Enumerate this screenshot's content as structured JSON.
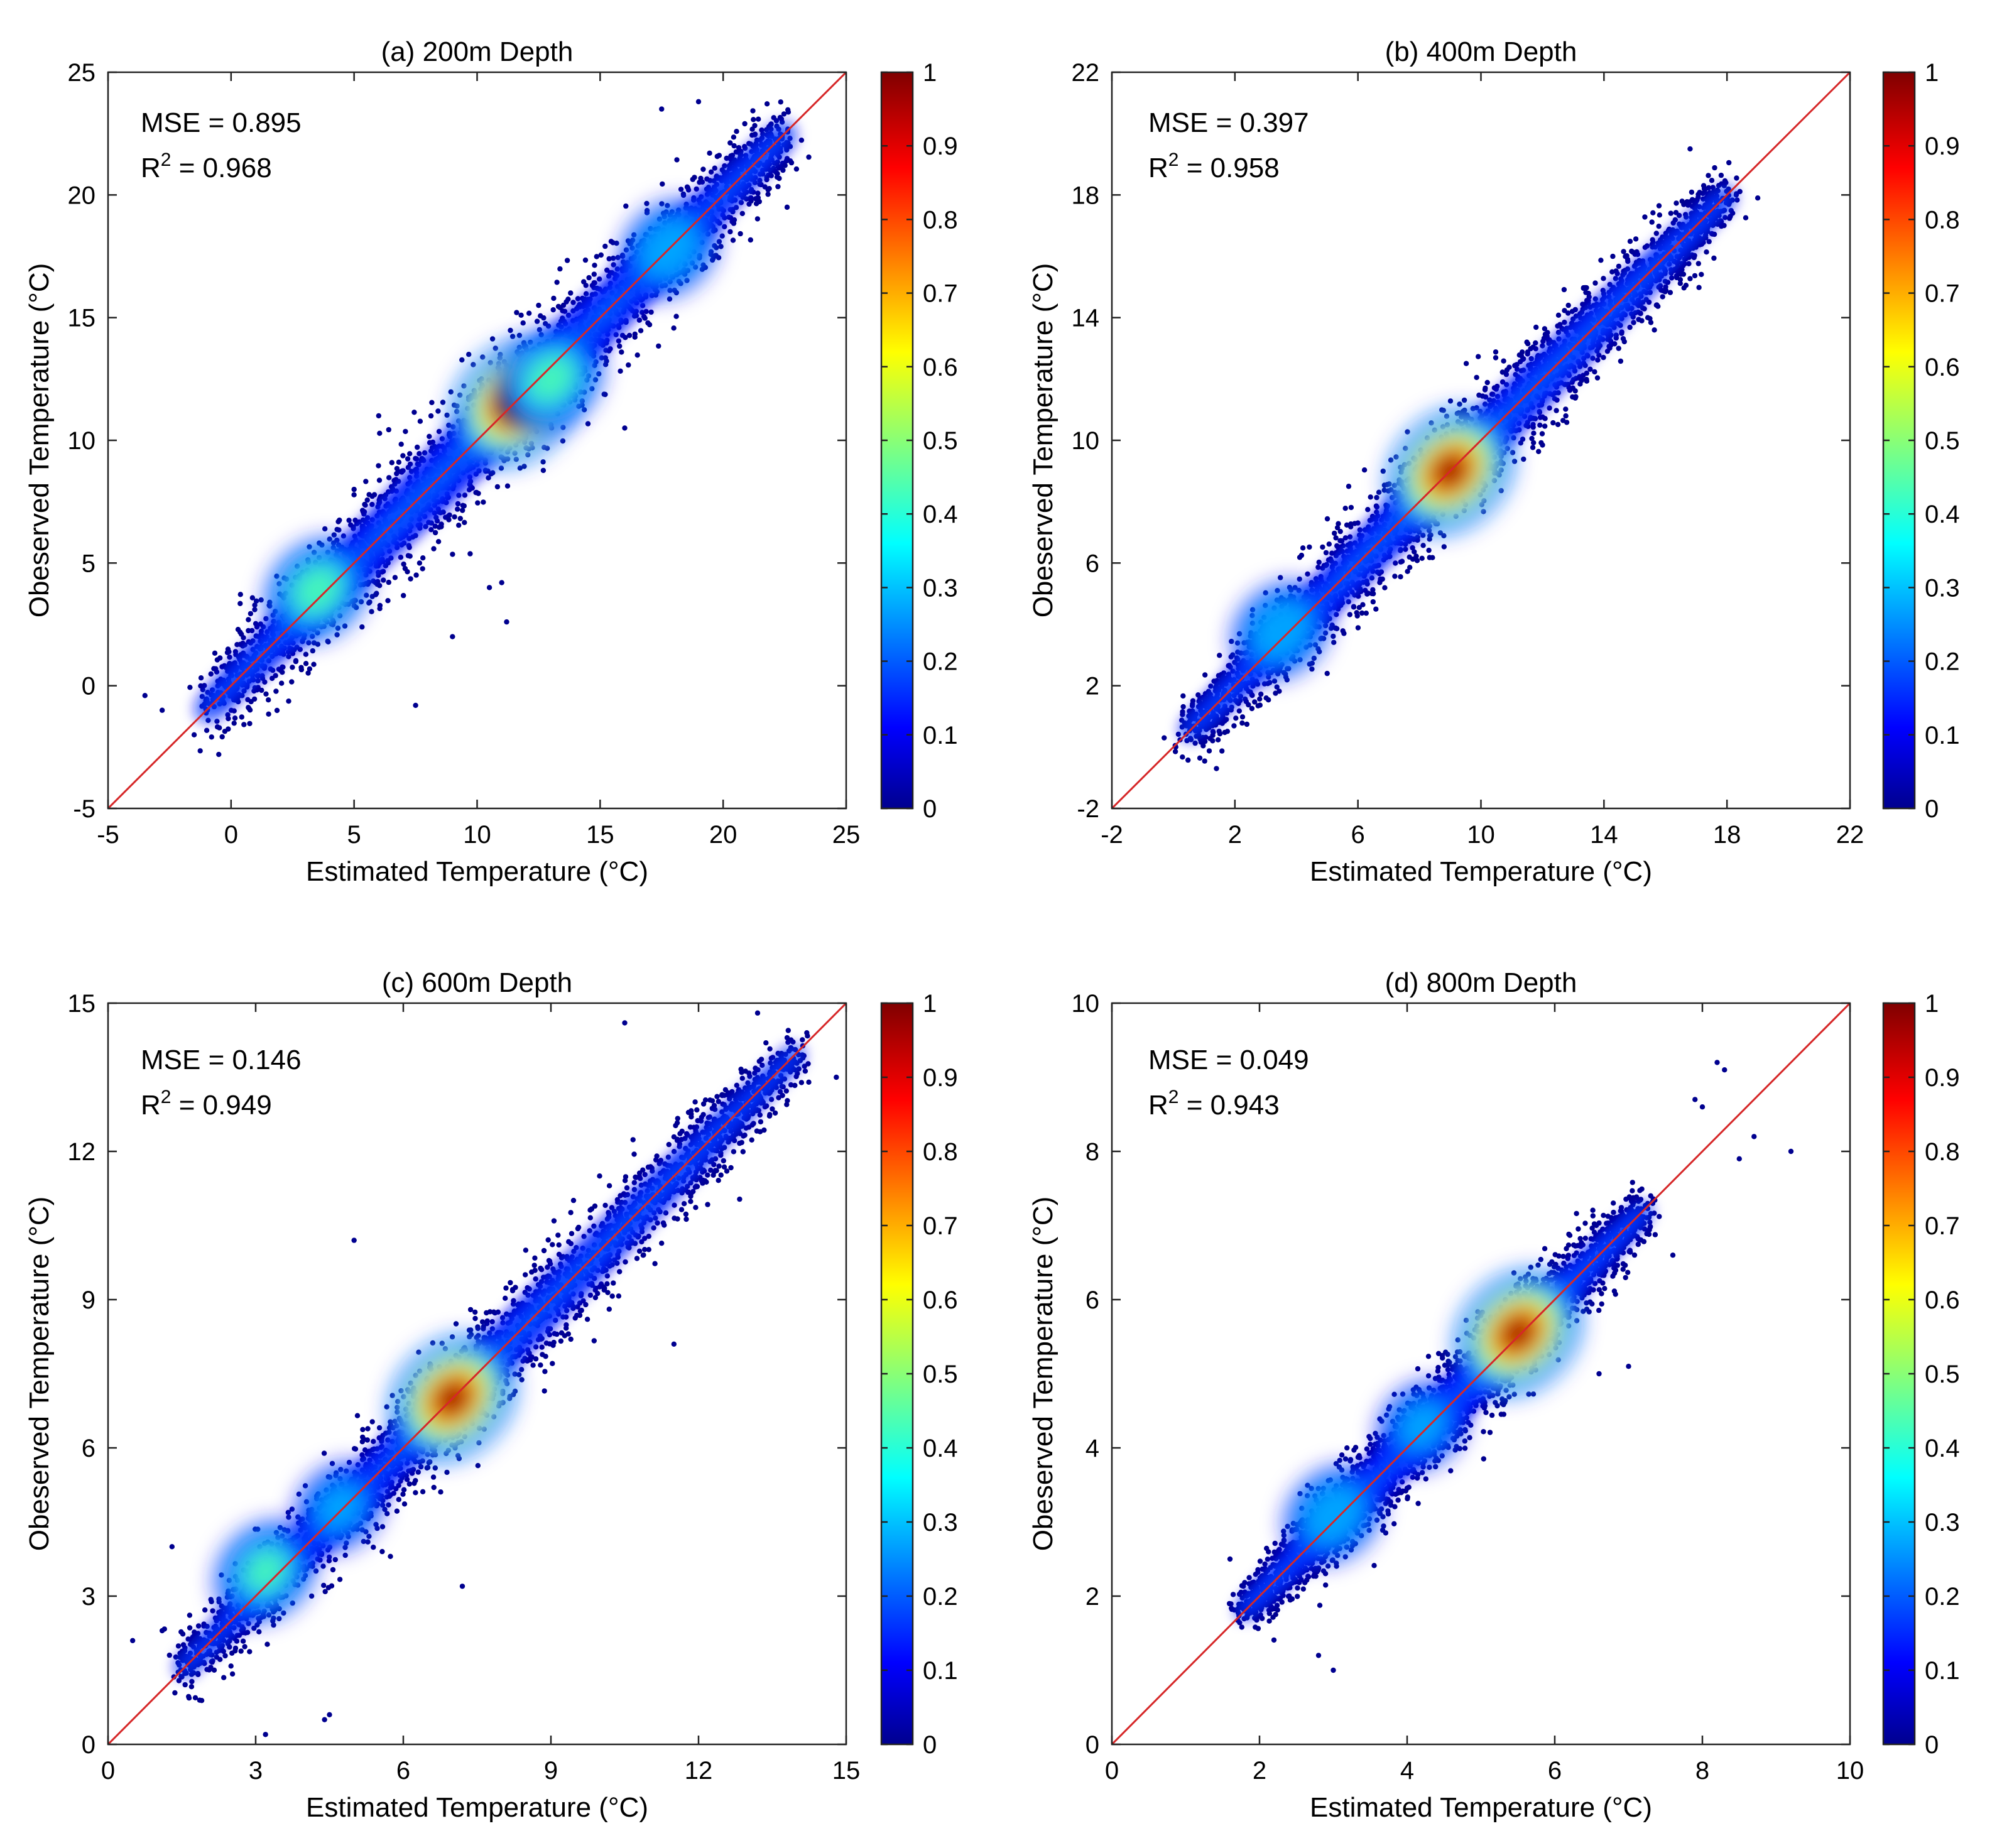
{
  "colorbar": {
    "ticks": [
      "0",
      "0.1",
      "0.2",
      "0.3",
      "0.4",
      "0.5",
      "0.6",
      "0.7",
      "0.8",
      "0.9",
      "1"
    ],
    "range": [
      0,
      1
    ],
    "colormap": "jet"
  },
  "line_color": "#d62728",
  "chart_data": [
    {
      "type": "scatter",
      "title": "(a) 200m Depth",
      "xlabel": "Estimated Temperature (°C)",
      "ylabel": "Obeserved Temperature (°C)",
      "xlim": [
        -5,
        25
      ],
      "ylim": [
        -5,
        25
      ],
      "xticks": [
        -5,
        0,
        5,
        10,
        15,
        20,
        25
      ],
      "yticks": [
        -5,
        0,
        5,
        10,
        15,
        20,
        25
      ],
      "stats": {
        "mse_label": "MSE = 0.895",
        "r2_prefix": "R",
        "r2_sup": "2",
        "r2_value": " = 0.968"
      },
      "reference_line": {
        "x": [
          -5,
          25
        ],
        "y": [
          -5,
          25
        ]
      },
      "band": {
        "x0": -1,
        "x1": 22.5,
        "spread": 2.2
      },
      "outliers": [
        [
          -3.5,
          -0.4
        ],
        [
          -2.8,
          -1
        ],
        [
          -1.5,
          -2
        ],
        [
          -0.5,
          -2.8
        ],
        [
          7.5,
          -0.8
        ],
        [
          10.5,
          4
        ],
        [
          11,
          4.2
        ],
        [
          11.2,
          2.6
        ],
        [
          9,
          2
        ],
        [
          17.5,
          23.5
        ],
        [
          19,
          23.8
        ],
        [
          5,
          8
        ],
        [
          6,
          11
        ],
        [
          16,
          10.5
        ],
        [
          22.6,
          19.5
        ],
        [
          12.5,
          15.5
        ]
      ],
      "hotspots": [
        {
          "x": 11.5,
          "y": 11.5,
          "density": 1.0
        },
        {
          "x": 3.5,
          "y": 3.9,
          "density": 0.5
        },
        {
          "x": 17.8,
          "y": 17.8,
          "density": 0.4
        },
        {
          "x": 13,
          "y": 12.5,
          "density": 0.5
        }
      ]
    },
    {
      "type": "scatter",
      "title": "(b) 400m Depth",
      "xlabel": "Estimated Temperature (°C)",
      "ylabel": "Obeserved Temperature (°C)",
      "xlim": [
        -2,
        22
      ],
      "ylim": [
        -2,
        22
      ],
      "xticks": [
        -2,
        2,
        6,
        10,
        14,
        18,
        22
      ],
      "yticks": [
        -2,
        2,
        6,
        10,
        14,
        18,
        22
      ],
      "stats": {
        "mse_label": "MSE = 0.397",
        "r2_prefix": "R",
        "r2_sup": "2",
        "r2_value": " = 0.958"
      },
      "reference_line": {
        "x": [
          -2,
          22
        ],
        "y": [
          -2,
          22
        ]
      },
      "band": {
        "x0": 0.5,
        "x1": 18,
        "spread": 1.5
      },
      "outliers": [
        [
          -0.3,
          0.3
        ],
        [
          0.5,
          0.8
        ],
        [
          1.4,
          -0.7
        ],
        [
          3.3,
          2.5
        ],
        [
          2.3,
          3.4
        ],
        [
          5.4,
          4.7
        ],
        [
          5.7,
          8.5
        ],
        [
          6.5,
          5
        ],
        [
          16.8,
          19.5
        ],
        [
          17.3,
          18.2
        ],
        [
          18.3,
          18
        ],
        [
          19,
          17.9
        ],
        [
          5,
          2.4
        ]
      ],
      "hotspots": [
        {
          "x": 9,
          "y": 9,
          "density": 1.0
        },
        {
          "x": 3.5,
          "y": 3.8,
          "density": 0.4
        },
        {
          "x": 1.5,
          "y": 1.6,
          "density": 0.1
        }
      ]
    },
    {
      "type": "scatter",
      "title": "(c) 600m Depth",
      "xlabel": "Estimated Temperature (°C)",
      "ylabel": "Obeserved Temperature (°C)",
      "xlim": [
        0,
        15
      ],
      "ylim": [
        0,
        15
      ],
      "xticks": [
        0,
        3,
        6,
        9,
        12,
        15
      ],
      "yticks": [
        0,
        3,
        6,
        9,
        12,
        15
      ],
      "stats": {
        "mse_label": "MSE = 0.146",
        "r2_prefix": "R",
        "r2_sup": "2",
        "r2_value": " = 0.949"
      },
      "reference_line": {
        "x": [
          0,
          15
        ],
        "y": [
          0,
          15
        ]
      },
      "band": {
        "x0": 1.5,
        "x1": 14,
        "spread": 0.9
      },
      "outliers": [
        [
          0.5,
          2.1
        ],
        [
          1.3,
          4
        ],
        [
          5,
          10.2
        ],
        [
          10.5,
          14.6
        ],
        [
          13.2,
          14.8
        ],
        [
          14.8,
          13.5
        ],
        [
          7.2,
          3.2
        ],
        [
          11.5,
          8.1
        ],
        [
          4.5,
          0.6
        ],
        [
          4.4,
          0.5
        ],
        [
          13.8,
          14.3
        ],
        [
          14.2,
          14.4
        ],
        [
          1.1,
          2.3
        ],
        [
          3.2,
          0.2
        ]
      ],
      "hotspots": [
        {
          "x": 7,
          "y": 7,
          "density": 1.0
        },
        {
          "x": 3.2,
          "y": 3.5,
          "density": 0.45
        },
        {
          "x": 4.7,
          "y": 4.8,
          "density": 0.3
        }
      ]
    },
    {
      "type": "scatter",
      "title": "(d) 800m Depth",
      "xlabel": "Estimated Temperature (°C)",
      "ylabel": "Obeserved Temperature (°C)",
      "xlim": [
        0,
        10
      ],
      "ylim": [
        0,
        10
      ],
      "xticks": [
        0,
        2,
        4,
        6,
        8,
        10
      ],
      "yticks": [
        0,
        2,
        4,
        6,
        8,
        10
      ],
      "stats": {
        "mse_label": "MSE = 0.049",
        "r2_prefix": "R",
        "r2_sup": "2",
        "r2_value": " = 0.943"
      },
      "reference_line": {
        "x": [
          0,
          10
        ],
        "y": [
          0,
          10
        ]
      },
      "band": {
        "x0": 1.8,
        "x1": 7.2,
        "spread": 0.55
      },
      "outliers": [
        [
          8.2,
          9.2
        ],
        [
          8.3,
          9.1
        ],
        [
          8.7,
          8.2
        ],
        [
          9.2,
          8
        ],
        [
          8.5,
          7.9
        ],
        [
          7.9,
          8.7
        ],
        [
          8.0,
          8.6
        ],
        [
          7.6,
          6.6
        ],
        [
          7.0,
          5.1
        ],
        [
          6.6,
          5.0
        ],
        [
          2.8,
          1.2
        ],
        [
          3.0,
          1.0
        ],
        [
          1.6,
          2.5
        ],
        [
          7.3,
          7.4
        ]
      ],
      "hotspots": [
        {
          "x": 5.5,
          "y": 5.55,
          "density": 1.0
        },
        {
          "x": 3.0,
          "y": 3.1,
          "density": 0.4
        },
        {
          "x": 4.2,
          "y": 4.3,
          "density": 0.3
        }
      ]
    }
  ]
}
